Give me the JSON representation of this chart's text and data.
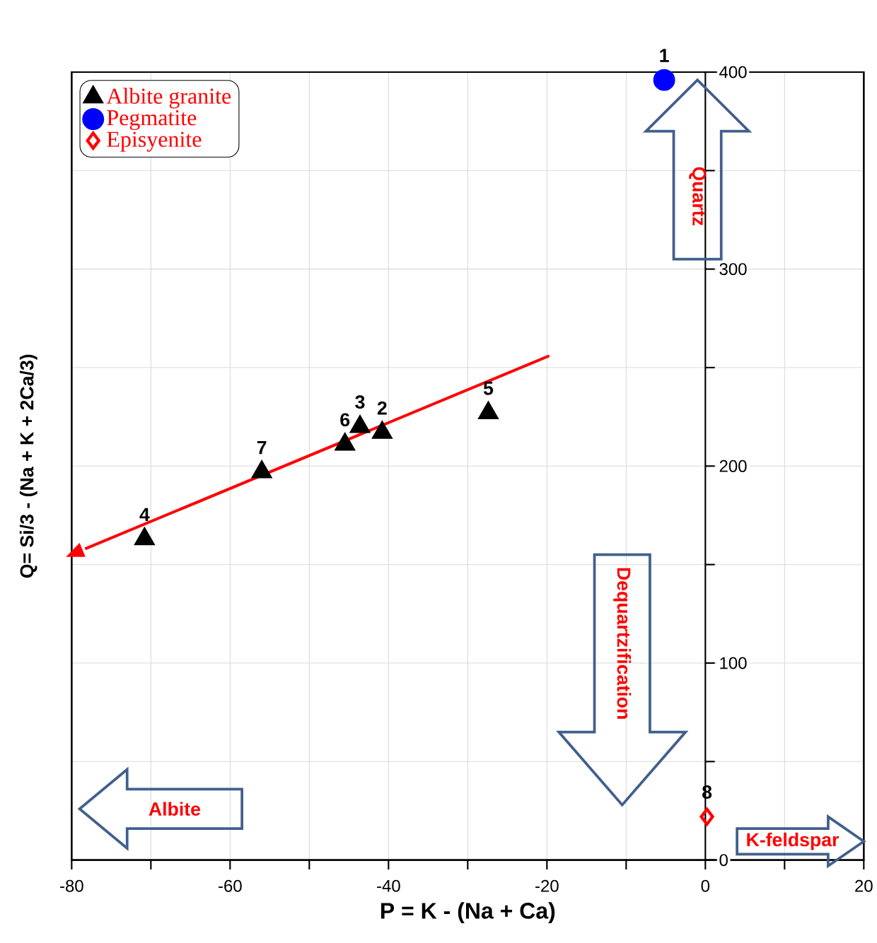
{
  "chart_data": {
    "type": "scatter",
    "xlabel": "P = K - (Na + Ca)",
    "ylabel": "Q= Si/3 - (Na + K + 2Ca/3)",
    "xlim": [
      -80,
      20
    ],
    "ylim": [
      0,
      400
    ],
    "xticks": [
      -80,
      {
        "value": -70,
        "label": null
      },
      -60,
      {
        "value": -50,
        "label": null
      },
      -40,
      {
        "value": -30,
        "label": null
      },
      -20,
      {
        "value": -10,
        "label": null
      },
      0,
      {
        "value": 10,
        "label": null
      },
      20
    ],
    "yticks": [
      0,
      {
        "value": 50,
        "label": null
      },
      100,
      {
        "value": 150,
        "label": null
      },
      200,
      {
        "value": 250,
        "label": null
      },
      300,
      {
        "value": 350,
        "label": null
      },
      400
    ],
    "grid": true,
    "legend": "top left",
    "series": [
      {
        "name": "Albite granite",
        "color": "#000000",
        "marker": "triangle",
        "x": [
          -40.8,
          -43.6,
          -70.8,
          -27.4,
          -45.5,
          -56.0
        ],
        "values": [
          217,
          220,
          163,
          227,
          211,
          197
        ]
      },
      {
        "name": "Pegmatite",
        "color": "#0000ff",
        "marker": "circle",
        "x": [
          -5.2
        ],
        "values": [
          396
        ]
      },
      {
        "name": "Episyenite",
        "color": "#ff0000",
        "marker": "diamond",
        "x": [
          0.2
        ],
        "values": [
          22
        ]
      },
      {
        "type": "line",
        "color": "#ff0000",
        "x": [
          -19.7,
          -78.3
        ],
        "values": [
          256,
          158
        ]
      }
    ],
    "annotations": [
      "Quartz",
      "Dequartzification",
      "Albite",
      "K-feldspar",
      {
        "text": "1",
        "x": -5.2,
        "y": 396
      },
      {
        "text": "2",
        "x": -40.8,
        "y": 217
      },
      {
        "text": "3",
        "x": -43.6,
        "y": 220
      },
      {
        "text": "4",
        "x": -70.8,
        "y": 163
      },
      {
        "text": "5",
        "x": -27.4,
        "y": 227
      },
      {
        "text": "6",
        "x": -45.5,
        "y": 211
      },
      {
        "text": "7",
        "x": -56.0,
        "y": 197
      },
      {
        "text": "8",
        "x": 0.2,
        "y": 22
      }
    ]
  }
}
